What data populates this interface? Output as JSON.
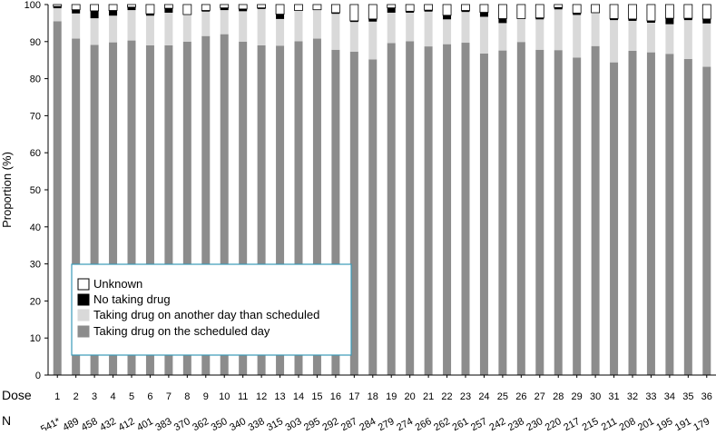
{
  "chart_data": {
    "type": "bar",
    "stacked": true,
    "title": "",
    "ylabel": "Proportion (%)",
    "ylim": [
      0,
      100
    ],
    "yticks": [
      0,
      10,
      20,
      30,
      40,
      50,
      60,
      70,
      80,
      90,
      100
    ],
    "grid": false,
    "legend_position": "bottom-left",
    "row_labels": {
      "dose": "Dose",
      "n": "N"
    },
    "categories": [
      "1",
      "2",
      "3",
      "4",
      "5",
      "6",
      "7",
      "8",
      "9",
      "10",
      "11",
      "12",
      "13",
      "14",
      "15",
      "16",
      "17",
      "18",
      "19",
      "20",
      "21",
      "22",
      "23",
      "24",
      "25",
      "26",
      "27",
      "28",
      "29",
      "30",
      "31",
      "32",
      "33",
      "34",
      "35",
      "36"
    ],
    "n_values": [
      "541*",
      "489",
      "458",
      "432",
      "412",
      "401",
      "383",
      "370",
      "362",
      "350",
      "340",
      "338",
      "315",
      "303",
      "295",
      "292",
      "287",
      "284",
      "279",
      "274",
      "266",
      "262",
      "261",
      "257",
      "242",
      "238",
      "230",
      "220",
      "217",
      "215",
      "211",
      "208",
      "201",
      "195",
      "191",
      "179"
    ],
    "legend_order": [
      "Unknown",
      "No taking drug",
      "Taking drug on another day than scheduled",
      "Taking drug on the scheduled day"
    ],
    "series": [
      {
        "name": "Taking drug on the scheduled day",
        "color": "#8c8c8c",
        "values": [
          95.5,
          90.8,
          89.1,
          89.8,
          90.3,
          89.0,
          89.0,
          90.0,
          91.5,
          92.0,
          90.0,
          89.0,
          88.9,
          90.1,
          90.8,
          87.8,
          87.3,
          85.2,
          89.6,
          90.1,
          88.7,
          89.3,
          89.7,
          86.8,
          87.6,
          89.9,
          87.8,
          87.7,
          85.7,
          88.8,
          84.4,
          87.5,
          87.1,
          86.7,
          85.3,
          83.2
        ]
      },
      {
        "name": "Taking drug on another day than scheduled",
        "color": "#d9d9d9",
        "values": [
          3.5,
          6.8,
          7.2,
          7.2,
          8.2,
          8.0,
          8.8,
          7.3,
          6.6,
          6.5,
          8.2,
          9.8,
          7.2,
          8.3,
          7.8,
          9.7,
          8.0,
          10.2,
          8.2,
          7.7,
          9.4,
          6.7,
          8.3,
          9.9,
          7.4,
          6.3,
          8.2,
          11.0,
          11.5,
          9.0,
          11.4,
          8.1,
          8.0,
          8.0,
          10.5,
          11.7
        ]
      },
      {
        "name": "No taking drug",
        "color": "#000000",
        "values": [
          0.5,
          1.0,
          2.0,
          1.4,
          0.8,
          0.5,
          1.2,
          0.0,
          0.3,
          0.6,
          0.6,
          0.3,
          1.3,
          0.0,
          0.0,
          0.3,
          0.3,
          0.7,
          1.3,
          0.4,
          0.4,
          1.1,
          0.4,
          1.2,
          1.2,
          0.0,
          0.4,
          0.5,
          0.5,
          0.0,
          0.4,
          0.5,
          0.5,
          1.6,
          0.5,
          1.2
        ]
      },
      {
        "name": "Unknown",
        "color": "#ffffff",
        "values": [
          0.5,
          1.4,
          1.7,
          1.6,
          0.7,
          2.5,
          1.0,
          2.7,
          1.6,
          0.9,
          1.2,
          0.9,
          2.6,
          1.6,
          1.4,
          2.2,
          4.4,
          3.9,
          0.9,
          1.8,
          1.5,
          2.9,
          1.6,
          2.1,
          3.8,
          3.8,
          3.6,
          0.8,
          2.3,
          2.2,
          3.8,
          3.9,
          4.4,
          3.7,
          3.7,
          3.9
        ]
      }
    ]
  }
}
